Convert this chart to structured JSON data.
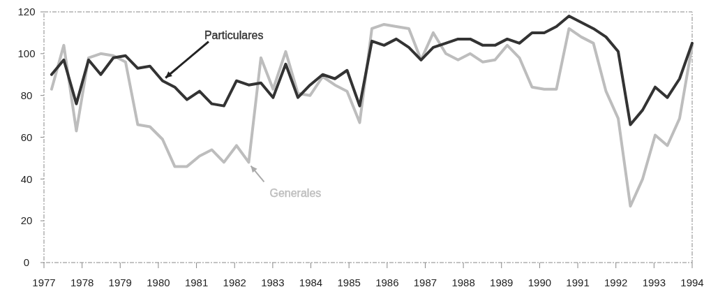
{
  "chart_data": {
    "type": "line",
    "x": [
      1977.2,
      1977.52,
      1977.85,
      1978.17,
      1978.49,
      1978.82,
      1979.14,
      1979.46,
      1979.78,
      1980.11,
      1980.43,
      1980.75,
      1981.08,
      1981.4,
      1981.72,
      1982.05,
      1982.37,
      1982.69,
      1983.01,
      1983.34,
      1983.66,
      1983.98,
      1984.31,
      1984.63,
      1984.95,
      1985.28,
      1985.6,
      1985.92,
      1986.24,
      1986.57,
      1986.89,
      1987.21,
      1987.54,
      1987.86,
      1988.18,
      1988.51,
      1988.83,
      1989.15,
      1989.47,
      1989.8,
      1990.12,
      1990.44,
      1990.77,
      1991.09,
      1991.41,
      1991.74,
      1992.06,
      1992.38,
      1992.7,
      1993.03,
      1993.35,
      1993.67,
      1994.0
    ],
    "series": [
      {
        "name": "Generales",
        "color": "#bdbdbd",
        "values": [
          83,
          104,
          63,
          98,
          100,
          99,
          96,
          66,
          65,
          59,
          46,
          46,
          51,
          54,
          48,
          56,
          48,
          98,
          83,
          101,
          81,
          80,
          89,
          85,
          82,
          67,
          112,
          114,
          113,
          112,
          97,
          110,
          100,
          97,
          100,
          96,
          97,
          104,
          98,
          84,
          83,
          83,
          112,
          108,
          105,
          82,
          69,
          27,
          40,
          61,
          56,
          69,
          104
        ]
      },
      {
        "name": "Particulares",
        "color": "#333333",
        "values": [
          90,
          97,
          76,
          97,
          90,
          98,
          99,
          93,
          94,
          87,
          84,
          78,
          82,
          76,
          75,
          87,
          85,
          86,
          79,
          95,
          79,
          85,
          90,
          88,
          92,
          75,
          106,
          104,
          107,
          103,
          97,
          103,
          105,
          107,
          107,
          104,
          104,
          107,
          105,
          110,
          110,
          113,
          118,
          115,
          112,
          108,
          101,
          66,
          73,
          84,
          79,
          88,
          105
        ]
      }
    ],
    "xlim": [
      1977,
      1994
    ],
    "xticks": [
      1977,
      1978,
      1979,
      1980,
      1981,
      1982,
      1983,
      1984,
      1985,
      1986,
      1987,
      1988,
      1989,
      1990,
      1991,
      1992,
      1993,
      1994
    ],
    "ylim": [
      0,
      120
    ],
    "yticks": [
      0,
      20,
      40,
      60,
      80,
      100,
      120
    ],
    "grid": false,
    "legend": false,
    "line_style": "solid",
    "marker": "none"
  }
}
